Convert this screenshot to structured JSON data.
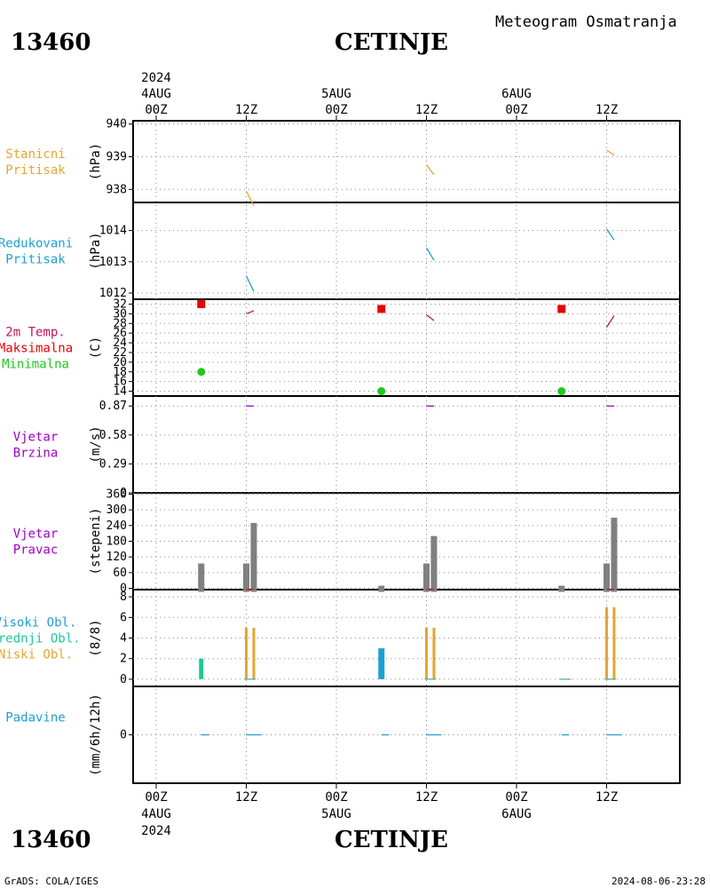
{
  "header": {
    "station_id": "13460",
    "station_name": "CETINJE",
    "subtitle": "Meteogram Osmatranja"
  },
  "footer": {
    "station_id": "13460",
    "station_name": "CETINJE",
    "credit": "GrADS: COLA/IGES",
    "timestamp": "2024-08-06-23:28"
  },
  "time_axis": {
    "hour_labels": [
      "00Z",
      "12Z",
      "00Z",
      "12Z",
      "00Z",
      "12Z"
    ],
    "day_labels": [
      "4AUG",
      "5AUG",
      "6AUG"
    ],
    "year": "2024"
  },
  "colors": {
    "pressure": "#e6a532",
    "pressure_reduced": "#1e9fd2",
    "temp_line": "#c8145a",
    "tmax": "#e60000",
    "tmin": "#1ec81e",
    "wind": "#a000c8",
    "wind_dir": "#808080",
    "high_cloud": "#1e9fd2",
    "mid_cloud": "#1ec896",
    "low_cloud": "#e6a532",
    "precip": "#1e9fd2"
  },
  "panels": [
    {
      "key": "stn_press",
      "labels": [
        "Stanicni",
        "Pritisak"
      ],
      "label_colors": [
        "#e6a532",
        "#e6a532"
      ],
      "unit": "(hPa)",
      "ticks": [
        "940",
        "939",
        "938"
      ]
    },
    {
      "key": "red_press",
      "labels": [
        "Redukovani",
        "Pritisak"
      ],
      "label_colors": [
        "#1e9fd2",
        "#1e9fd2"
      ],
      "unit": "(hPa)",
      "ticks": [
        "1014",
        "1013",
        "1012"
      ]
    },
    {
      "key": "temp",
      "labels": [
        "2m Temp.",
        "Maksimalna",
        "Minimalna"
      ],
      "label_colors": [
        "#c8145a",
        "#e60000",
        "#1ec81e"
      ],
      "unit": "(C)",
      "ticks": [
        "32",
        "30",
        "28",
        "26",
        "24",
        "22",
        "20",
        "18",
        "16",
        "14"
      ]
    },
    {
      "key": "wind_speed",
      "labels": [
        "Vjetar",
        "Brzina"
      ],
      "label_colors": [
        "#a000c8",
        "#a000c8"
      ],
      "unit": "(m/s)",
      "ticks": [
        "0.87",
        "0.58",
        "0.29",
        "0"
      ]
    },
    {
      "key": "wind_dir",
      "labels": [
        "Vjetar",
        "Pravac"
      ],
      "label_colors": [
        "#a000c8",
        "#a000c8"
      ],
      "unit": "(stepeni)",
      "ticks": [
        "360",
        "300",
        "240",
        "180",
        "120",
        "60",
        "0"
      ]
    },
    {
      "key": "clouds",
      "labels": [
        "Visoki Obl.",
        "Srednji Obl.",
        "Niski Obl."
      ],
      "label_colors": [
        "#1e9fd2",
        "#1ec896",
        "#e6a532"
      ],
      "unit": "(8/8)",
      "ticks": [
        "8",
        "6",
        "4",
        "2",
        "0"
      ]
    },
    {
      "key": "precip",
      "labels": [
        "Padavine"
      ],
      "label_colors": [
        "#1e9fd2"
      ],
      "unit": "(mm/6h/12h)",
      "ticks": [
        "0"
      ]
    }
  ],
  "chart_data": {
    "type": "line",
    "x_unit": "hours after 4AUG 00Z",
    "xlim": [
      -3,
      69
    ],
    "station_pressure": {
      "ylim": [
        937.6,
        940.1
      ],
      "series": [
        {
          "x": [
            12,
            13
          ],
          "y": [
            937.95,
            937.5
          ]
        },
        {
          "x": [
            36,
            37
          ],
          "y": [
            938.75,
            938.45
          ]
        },
        {
          "x": [
            60,
            61
          ],
          "y": [
            939.2,
            939.05
          ]
        }
      ]
    },
    "reduced_pressure": {
      "ylim": [
        1011.8,
        1014.9
      ],
      "series": [
        {
          "x": [
            12,
            13
          ],
          "y": [
            1012.55,
            1012.05
          ]
        },
        {
          "x": [
            36,
            37
          ],
          "y": [
            1013.45,
            1013.05
          ]
        },
        {
          "x": [
            60,
            61
          ],
          "y": [
            1014.05,
            1013.7
          ]
        }
      ]
    },
    "temperature": {
      "ylim": [
        13,
        33
      ],
      "line": [
        {
          "x": [
            12,
            13
          ],
          "y": [
            30.0,
            30.6
          ]
        },
        {
          "x": [
            36,
            37
          ],
          "y": [
            29.8,
            28.6
          ]
        },
        {
          "x": [
            60,
            61
          ],
          "y": [
            27.2,
            29.6
          ]
        }
      ],
      "max": {
        "x": [
          6,
          30,
          54
        ],
        "y": [
          32.0,
          31.0,
          31.0
        ]
      },
      "min": {
        "x": [
          6,
          30,
          54
        ],
        "y": [
          18.0,
          14.0,
          14.0
        ]
      }
    },
    "wind_speed": {
      "ylim": [
        0,
        0.97
      ],
      "series": [
        {
          "x": [
            12,
            13
          ],
          "y": [
            0.87,
            0.87
          ]
        },
        {
          "x": [
            36,
            37
          ],
          "y": [
            0.87,
            0.87
          ]
        },
        {
          "x": [
            60,
            61
          ],
          "y": [
            0.87,
            0.87
          ]
        }
      ]
    },
    "wind_direction": {
      "ylim": [
        -5,
        365
      ],
      "bars": [
        {
          "x": 6,
          "value": 95
        },
        {
          "x": 12,
          "value": 95
        },
        {
          "x": 13,
          "value": 250
        },
        {
          "x": 30,
          "value": 10
        },
        {
          "x": 36,
          "value": 95
        },
        {
          "x": 37,
          "value": 200
        },
        {
          "x": 54,
          "value": 10
        },
        {
          "x": 60,
          "value": 95
        },
        {
          "x": 61,
          "value": 270
        }
      ]
    },
    "clouds": {
      "ylim": [
        -0.7,
        8.7
      ],
      "high": [
        {
          "x": 30,
          "value": 3
        }
      ],
      "mid": [
        {
          "x": 6,
          "value": 2
        }
      ],
      "low": [
        {
          "x": 12,
          "value": 5
        },
        {
          "x": 13,
          "value": 5
        },
        {
          "x": 36,
          "value": 5
        },
        {
          "x": 37,
          "value": 5
        },
        {
          "x": 60,
          "value": 7
        },
        {
          "x": 61,
          "value": 7
        }
      ]
    },
    "precipitation": {
      "ylim": [
        -5,
        5
      ],
      "series": [
        {
          "x": [
            6,
            7
          ],
          "y": [
            0,
            0
          ]
        },
        {
          "x": [
            12,
            14
          ],
          "y": [
            0,
            0
          ]
        },
        {
          "x": [
            30,
            31
          ],
          "y": [
            0,
            0
          ]
        },
        {
          "x": [
            36,
            38
          ],
          "y": [
            0,
            0
          ]
        },
        {
          "x": [
            54,
            55
          ],
          "y": [
            0,
            0
          ]
        },
        {
          "x": [
            60,
            62
          ],
          "y": [
            0,
            0
          ]
        }
      ]
    }
  }
}
